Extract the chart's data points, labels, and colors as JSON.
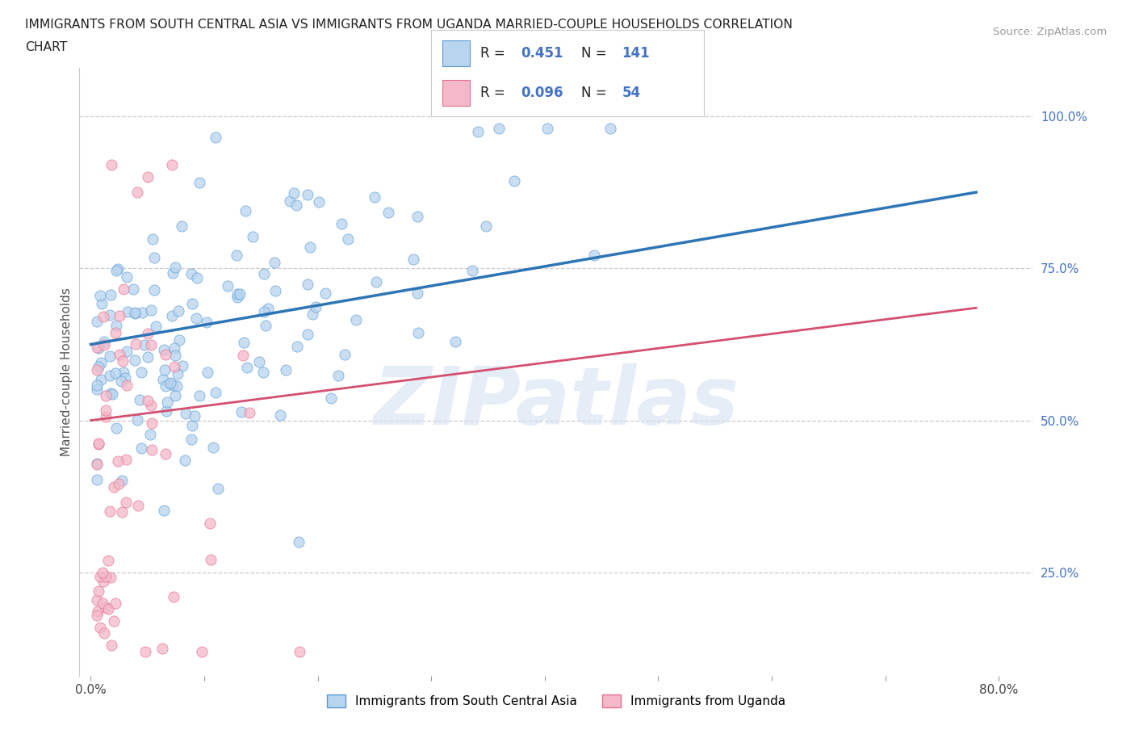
{
  "title_line1": "IMMIGRANTS FROM SOUTH CENTRAL ASIA VS IMMIGRANTS FROM UGANDA MARRIED-COUPLE HOUSEHOLDS CORRELATION",
  "title_line2": "CHART",
  "source": "Source: ZipAtlas.com",
  "ylabel": "Married-couple Households",
  "R_blue": 0.451,
  "N_blue": 141,
  "R_pink": 0.096,
  "N_pink": 54,
  "color_blue_fill": "#b8d4ee",
  "color_blue_edge": "#5b9bd5",
  "color_blue_line": "#2e75b6",
  "color_pink_fill": "#f4b8c8",
  "color_pink_edge": "#e07090",
  "color_pink_line": "#d45070",
  "watermark": "ZIPatlas",
  "x_ticks": [
    0.0,
    0.1,
    0.2,
    0.3,
    0.4,
    0.5,
    0.6,
    0.7,
    0.8
  ],
  "x_tick_labels": [
    "0.0%",
    "",
    "",
    "",
    "",
    "",
    "",
    "",
    "80.0%"
  ],
  "y_ticks_right": [
    0.25,
    0.5,
    0.75,
    1.0
  ],
  "y_tick_labels_right": [
    "25.0%",
    "50.0%",
    "75.0%",
    "100.0%"
  ],
  "blue_trend_x": [
    0.0,
    0.78
  ],
  "blue_trend_y": [
    0.625,
    0.875
  ],
  "pink_trend_x": [
    0.0,
    0.78
  ],
  "pink_trend_y": [
    0.5,
    0.685
  ],
  "xlim": [
    -0.01,
    0.83
  ],
  "ylim": [
    0.08,
    1.08
  ]
}
